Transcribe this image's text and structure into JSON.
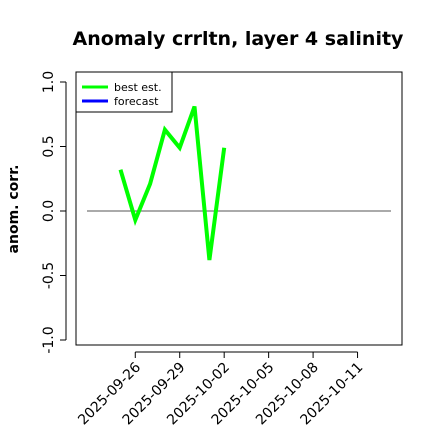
{
  "chart_data": {
    "type": "line",
    "title": "Anomaly crrltn, layer 4 salinity",
    "ylabel": "anom. corr.",
    "xlabel": "",
    "ylim": [
      -1.0,
      1.0
    ],
    "yticks": [
      -1.0,
      -0.5,
      0.0,
      0.5,
      1.0
    ],
    "ytick_labels": [
      "-1.0",
      "-0.5",
      "0.0",
      "0.5",
      "1.0"
    ],
    "xlim": [
      "2025-09-22",
      "2025-10-14"
    ],
    "xticks": [
      "2025-09-26",
      "2025-09-29",
      "2025-10-02",
      "2025-10-05",
      "2025-10-08",
      "2025-10-11"
    ],
    "xtick_colors": [
      "#000000",
      "#000000",
      "#228B22",
      "#000000",
      "#000000",
      "#000000"
    ],
    "zero_line": 0.0,
    "legend": {
      "position": "top-left",
      "entries": [
        {
          "label": "best est.",
          "color": "#00ff00"
        },
        {
          "label": "forecast",
          "color": "#0000ff"
        }
      ]
    },
    "series": [
      {
        "name": "best est.",
        "color": "#00ff00",
        "x": [
          "2025-09-25",
          "2025-09-26",
          "2025-09-27",
          "2025-09-28",
          "2025-09-29",
          "2025-09-30",
          "2025-10-01",
          "2025-10-02"
        ],
        "values": [
          0.32,
          -0.07,
          0.21,
          0.63,
          0.49,
          0.81,
          -0.38,
          0.49
        ]
      },
      {
        "name": "forecast",
        "color": "#0000ff",
        "x": [],
        "values": []
      }
    ]
  }
}
